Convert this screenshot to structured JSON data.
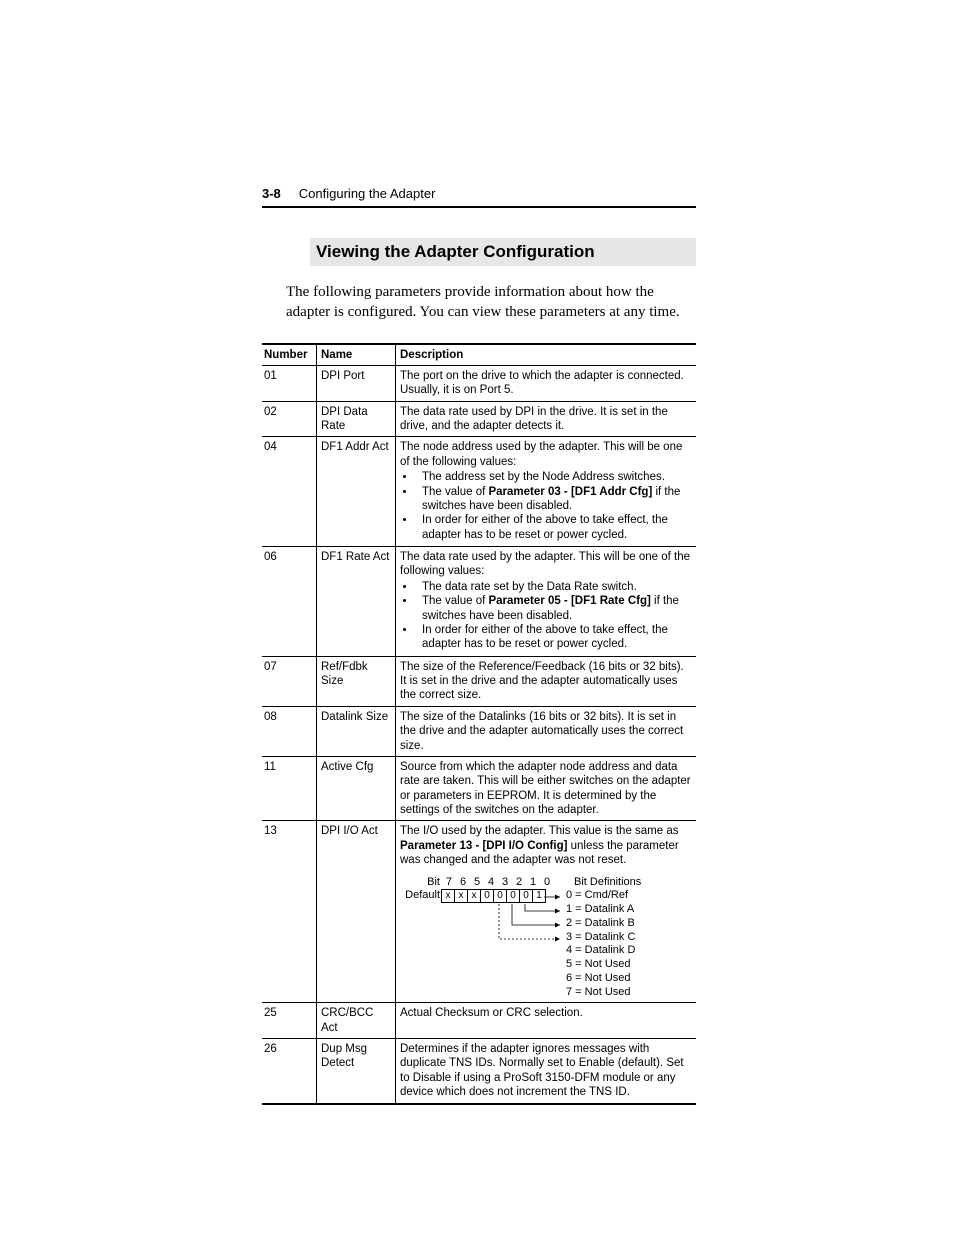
{
  "header": {
    "page_num": "3-8",
    "chapter": "Configuring the Adapter"
  },
  "section_title": "Viewing the Adapter Configuration",
  "intro": "The following parameters provide information about how the adapter is configured. You can view these parameters at any time.",
  "table": {
    "columns": {
      "num": "Number",
      "name": "Name",
      "desc": "Description"
    },
    "rows": [
      {
        "num": "01",
        "name": "DPI Port",
        "desc_plain": "The port on the drive to which the adapter is connected. Usually, it is on Port 5."
      },
      {
        "num": "02",
        "name": "DPI Data Rate",
        "desc_plain": "The data rate used by DPI in the drive. It is set in the drive, and the adapter detects it."
      },
      {
        "num": "04",
        "name": "DF1 Addr Act",
        "desc_lead": "The node address used by the adapter. This will be one of the following values:",
        "bullets": [
          {
            "text": "The address set by the Node Address switches."
          },
          {
            "pre": "The value of ",
            "bold": "Parameter 03 - [DF1 Addr Cfg]",
            "post": " if the switches have been disabled."
          },
          {
            "text": "In order for either of the above to take effect, the adapter has to be reset or power cycled."
          }
        ]
      },
      {
        "num": "06",
        "name": "DF1 Rate Act",
        "desc_lead": "The data rate used by the adapter. This will be one of the following values:",
        "bullets": [
          {
            "text": "The data rate set by the Data Rate switch."
          },
          {
            "pre": "The value of ",
            "bold": "Parameter 05 - [DF1 Rate Cfg]",
            "post": " if the switches have been disabled."
          },
          {
            "text": "In order for either of the above to take effect, the adapter has to be reset or power cycled."
          }
        ]
      },
      {
        "num": "07",
        "name": "Ref/Fdbk Size",
        "desc_plain": "The size of the Reference/Feedback (16 bits or 32 bits). It is set in the drive and the adapter automatically uses the correct size."
      },
      {
        "num": "08",
        "name": "Datalink Size",
        "desc_plain": "The size of the Datalinks (16 bits or 32 bits). It is set in the drive and the adapter automatically uses the correct size."
      },
      {
        "num": "11",
        "name": "Active Cfg",
        "desc_plain": "Source from which the adapter node address and data rate are taken. This will be either switches on the adapter or parameters in EEPROM. It is determined by the settings of the switches on the adapter."
      },
      {
        "num": "13",
        "name": "DPI I/O Act",
        "dpi": true,
        "dpi_lead_pre": "The I/O used by the adapter. This value is the same as ",
        "dpi_lead_bold": "Parameter 13 - [DPI I/O Config]",
        "dpi_lead_post": " unless the parameter was changed and the adapter was not reset.",
        "bit_label": "Bit",
        "default_label": "Default",
        "bits_header": [
          "7",
          "6",
          "5",
          "4",
          "3",
          "2",
          "1",
          "0"
        ],
        "bits_default": [
          "x",
          "x",
          "x",
          "0",
          "0",
          "0",
          "0",
          "1"
        ],
        "bit_def_title": "Bit Definitions",
        "bit_defs": [
          "0 = Cmd/Ref",
          "1 = Datalink A",
          "2 = Datalink B",
          "3 = Datalink C",
          "4 = Datalink D",
          "5 = Not Used",
          "6 = Not Used",
          "7 = Not Used"
        ]
      },
      {
        "num": "25",
        "name": "CRC/BCC Act",
        "desc_plain": "Actual Checksum or CRC selection."
      },
      {
        "num": "26",
        "name": "Dup Msg Detect",
        "desc_plain": "Determines if the adapter ignores messages with duplicate TNS IDs. Normally set to Enable (default). Set to Disable if using a ProSoft 3150-DFM module or any device which does not increment the TNS ID."
      }
    ]
  }
}
